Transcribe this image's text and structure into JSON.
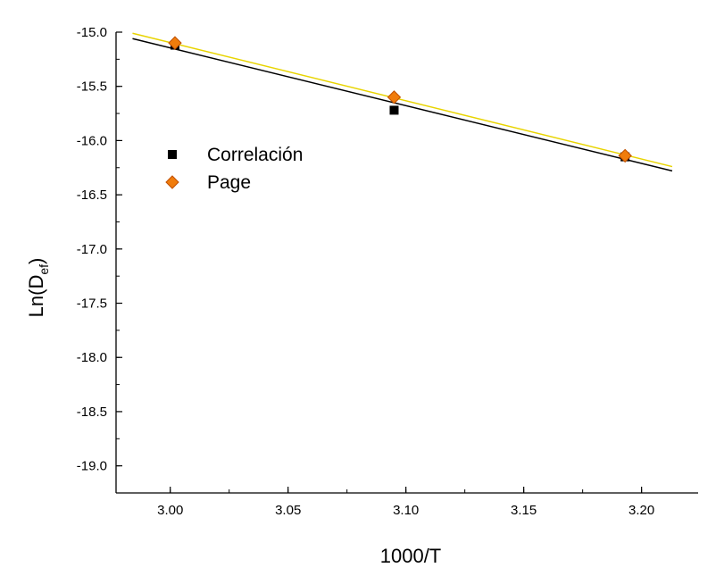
{
  "chart_data": {
    "type": "scatter",
    "title": "",
    "xlabel": "1000/T",
    "ylabel": {
      "main": "Ln(D",
      "sub": "ef",
      "close": ")"
    },
    "xlim": [
      2.977,
      3.224
    ],
    "ylim": [
      -19.25,
      -15.0
    ],
    "x_ticks": [
      "3.00",
      "3.05",
      "3.10",
      "3.15",
      "3.20"
    ],
    "y_ticks": [
      "-15.0",
      "-15.5",
      "-16.0",
      "-16.5",
      "-17.0",
      "-17.5",
      "-18.0",
      "-18.5",
      "-19.0"
    ],
    "grid": false,
    "legend_position": "upper-left",
    "series": [
      {
        "name": "Correlación",
        "marker": "square",
        "color": "#000000",
        "x": [
          3.002,
          3.095,
          3.193
        ],
        "y": [
          -15.12,
          -15.72,
          -16.15
        ],
        "fit": {
          "x": [
            2.984,
            3.213
          ],
          "y": [
            -15.06,
            -16.28
          ],
          "color": "#000000"
        }
      },
      {
        "name": "Page",
        "marker": "diamond",
        "color": "#f07c0c",
        "edge_color": "#c05000",
        "x": [
          3.002,
          3.095,
          3.193
        ],
        "y": [
          -15.1,
          -15.6,
          -16.14
        ],
        "fit": {
          "x": [
            2.984,
            3.213
          ],
          "y": [
            -15.01,
            -16.24
          ],
          "color": "#e8d400"
        }
      }
    ]
  }
}
